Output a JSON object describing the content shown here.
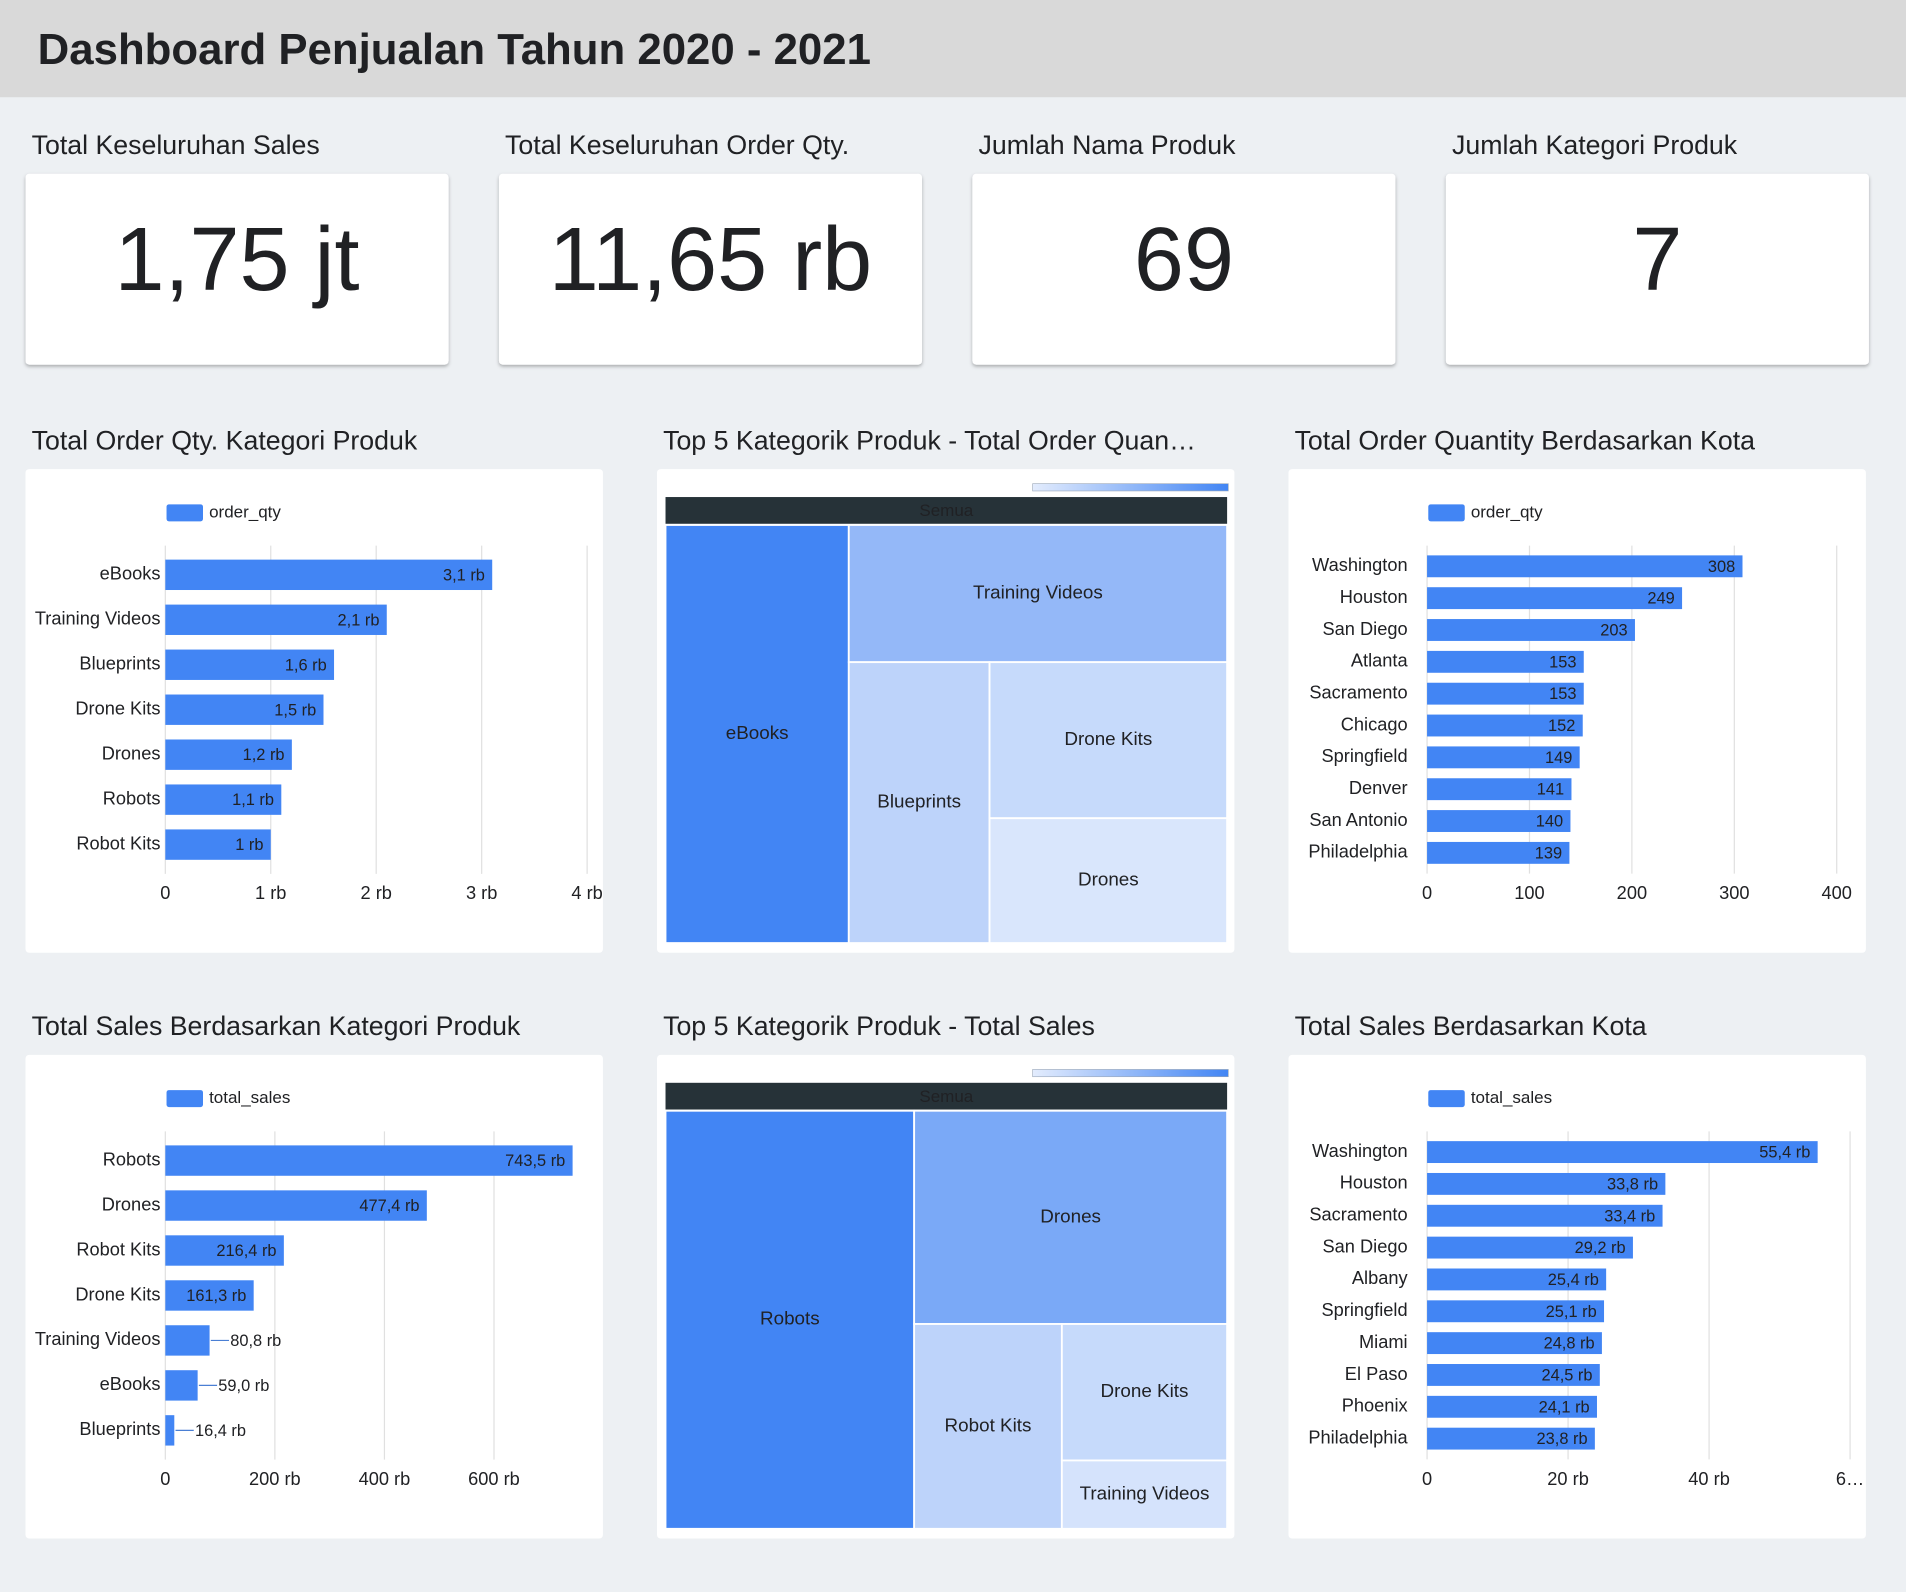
{
  "header": {
    "title": "Dashboard Penjualan Tahun 2020 - 2021"
  },
  "kpis": [
    {
      "label": "Total Keseluruhan Sales",
      "value": "1,75 jt"
    },
    {
      "label": "Total Keseluruhan Order Qty.",
      "value": "11,65 rb"
    },
    {
      "label": "Jumlah Nama Produk",
      "value": 69
    },
    {
      "label": "Jumlah Kategori Produk",
      "value": 7
    }
  ],
  "chart_data": [
    {
      "type": "bar",
      "title": "Total Order Qty. Kategori Produk",
      "categories": [
        "eBooks",
        "Training Videos",
        "Blueprints",
        "Drone Kits",
        "Drones",
        "Robots",
        "Robot Kits"
      ],
      "series": [
        {
          "name": "order_qty",
          "color": "#4285f4",
          "values": [
            3100,
            2100,
            1600,
            1500,
            1200,
            1100,
            1000
          ],
          "value_labels": [
            "3,1 rb",
            "2,1 rb",
            "1,6 rb",
            "1,5 rb",
            "1,2 rb",
            "1,1 rb",
            "1 rb"
          ]
        }
      ],
      "xlim": [
        0,
        4000
      ],
      "xticks": [
        0,
        {
          "value": 1000,
          "label": "1 rb"
        },
        {
          "value": 2000,
          "label": "2 rb"
        },
        {
          "value": 3000,
          "label": "3 rb"
        },
        {
          "value": 4000,
          "label": "4 rb"
        }
      ],
      "grid": true,
      "legend": "top"
    },
    {
      "type": "treemap",
      "title": "Top 5 Kategorik Produk - Total Order Quan…",
      "header": "Semua",
      "categories": [
        "eBooks",
        "Training Videos",
        "Blueprints",
        "Drone Kits",
        "Drones"
      ],
      "values": [
        3100,
        2100,
        1600,
        1500,
        1200
      ],
      "colors": [
        "#4285f4",
        "#94b8f8",
        "#bdd3fa",
        "#c6dafb",
        "#d9e6fc"
      ]
    },
    {
      "type": "bar",
      "title": "Total Order Quantity Berdasarkan Kota",
      "categories": [
        "Washington",
        "Houston",
        "San Diego",
        "Atlanta",
        "Sacramento",
        "Chicago",
        "Springfield",
        "Denver",
        "San Antonio",
        "Philadelphia"
      ],
      "series": [
        {
          "name": "order_qty",
          "color": "#4285f4",
          "values": [
            308,
            249,
            203,
            153,
            153,
            152,
            149,
            141,
            140,
            139
          ]
        }
      ],
      "xlim": [
        0,
        400
      ],
      "xticks": [
        0,
        100,
        200,
        300,
        400
      ],
      "grid": true,
      "legend": "top"
    },
    {
      "type": "bar",
      "title": "Total Sales Berdasarkan Kategori Produk",
      "categories": [
        "Robots",
        "Drones",
        "Robot Kits",
        "Drone Kits",
        "Training Videos",
        "eBooks",
        "Blueprints"
      ],
      "series": [
        {
          "name": "total_sales",
          "color": "#4285f4",
          "values": [
            743500,
            477400,
            216400,
            161300,
            80800,
            59000,
            16400
          ],
          "value_labels": [
            "743,5 rb",
            "477,4 rb",
            "216,4 rb",
            "161,3 rb",
            "80,8 rb",
            "59,0 rb",
            "16,4 rb"
          ]
        }
      ],
      "xlim": [
        0,
        770000
      ],
      "xticks": [
        0,
        {
          "value": 200000,
          "label": "200 rb"
        },
        {
          "value": 400000,
          "label": "400 rb"
        },
        {
          "value": 600000,
          "label": "600 rb"
        }
      ],
      "grid": true,
      "legend": "top"
    },
    {
      "type": "treemap",
      "title": "Top 5 Kategorik Produk - Total Sales",
      "header": "Semua",
      "categories": [
        "Robots",
        "Drones",
        "Robot Kits",
        "Drone Kits",
        "Training Videos"
      ],
      "values": [
        743500,
        477400,
        216400,
        161300,
        80800
      ],
      "colors": [
        "#4285f4",
        "#7aa9f7",
        "#bdd3fa",
        "#c6dafb",
        "#d5e3fc"
      ]
    },
    {
      "type": "bar",
      "title": "Total Sales Berdasarkan Kota",
      "categories": [
        "Washington",
        "Houston",
        "Sacramento",
        "San Diego",
        "Albany",
        "Springfield",
        "Miami",
        "El Paso",
        "Phoenix",
        "Philadelphia"
      ],
      "series": [
        {
          "name": "total_sales",
          "color": "#4285f4",
          "values": [
            55400,
            33800,
            33400,
            29200,
            25400,
            25100,
            24800,
            24500,
            24100,
            23800
          ],
          "value_labels": [
            "55,4 rb",
            "33,8 rb",
            "33,4 rb",
            "29,2 rb",
            "25,4 rb",
            "25,1 rb",
            "24,8 rb",
            "24,5 rb",
            "24,1 rb",
            "23,8 rb"
          ]
        }
      ],
      "xlim": [
        0,
        60000
      ],
      "xticks": [
        0,
        {
          "value": 20000,
          "label": "20 rb"
        },
        {
          "value": 40000,
          "label": "40 rb"
        },
        {
          "value": 60000,
          "label": "6…"
        }
      ],
      "grid": true,
      "legend": "top"
    }
  ]
}
